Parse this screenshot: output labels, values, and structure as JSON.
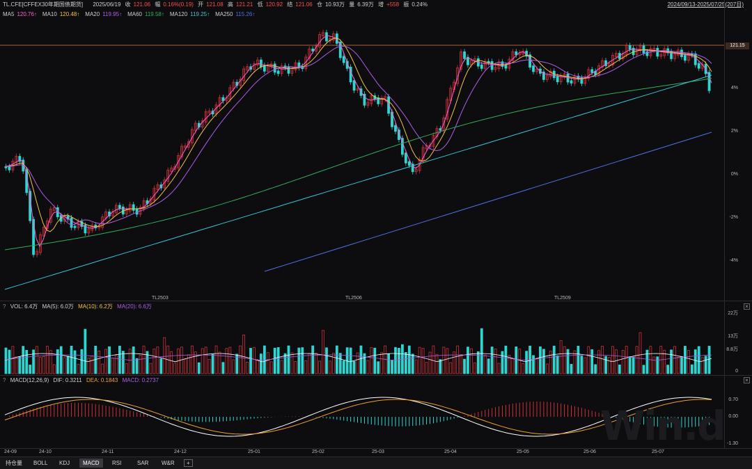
{
  "header": {
    "symbol": "TL.CFE[CFFEX30年期国债期货]",
    "date": "2025/06/19",
    "close_label": "收",
    "close_val": "121.06",
    "change_label": "幅",
    "change_val": "0.16%(0.19)",
    "open_label": "开",
    "open_val": "121.08",
    "high_label": "高",
    "high_val": "121.21",
    "low_label": "低",
    "low_val": "120.92",
    "settle_label": "结",
    "settle_val": "121.06",
    "oi_label": "仓",
    "oi_val": "10.93万",
    "vol_label": "量",
    "vol_val": "6.39万",
    "inc_label": "增",
    "inc_val": "+558",
    "amp_label": "振",
    "amp_val": "0.24%",
    "range": "2024/09/13-2025/07/25(207日)"
  },
  "ma_legend": [
    {
      "label": "MA5",
      "value": "120.76↑",
      "color": "#ff5fd2"
    },
    {
      "label": "MA10",
      "value": "120.48↑",
      "color": "#f6c245"
    },
    {
      "label": "MA20",
      "value": "119.95↑",
      "color": "#b25ce8"
    },
    {
      "label": "MA60",
      "value": "119.58↑",
      "color": "#2fae5a"
    },
    {
      "label": "MA120",
      "value": "119.25↑",
      "color": "#35c6d6"
    },
    {
      "label": "MA250",
      "value": "115.26↑",
      "color": "#4f6fe0"
    }
  ],
  "price_axis": [
    "4%",
    "2%",
    "0%",
    "-2%",
    "-4%"
  ],
  "price_tag": "121.15",
  "contracts": [
    "TL2503",
    "TL2506",
    "TL2509"
  ],
  "vol_header": {
    "q": "?",
    "vol": "VOL: 6.4万",
    "ma5": "MA(5): 6.0万",
    "ma10": "MA(10): 6.2万",
    "ma20": "MA(20): 6.6万"
  },
  "vol_axis": [
    "22万",
    "13万",
    "8.8万",
    "0"
  ],
  "macd_header": {
    "q": "?",
    "name": "MACD(12,26,9)",
    "dif": "DIF: 0.3211",
    "dea": "DEA: 0.1843",
    "macd": "MACD: 0.2737"
  },
  "macd_axis": [
    "0.70",
    "0.00",
    "-1.30"
  ],
  "x_axis": [
    "24-09",
    "24-10",
    "24-11",
    "24-12",
    "25-01",
    "25-02",
    "25-03",
    "25-04",
    "25-05",
    "25-06",
    "25-07"
  ],
  "tabs": [
    "持仓量",
    "BOLL",
    "KDJ",
    "MACD",
    "RSI",
    "SAR",
    "W&R"
  ],
  "active_tab": "MACD",
  "watermark": "Win.d",
  "colors": {
    "up": "#c8313a",
    "down": "#2fd5d0",
    "bg": "#0d0d0f",
    "dif": "#ffffff",
    "dea": "#f0a030"
  }
}
